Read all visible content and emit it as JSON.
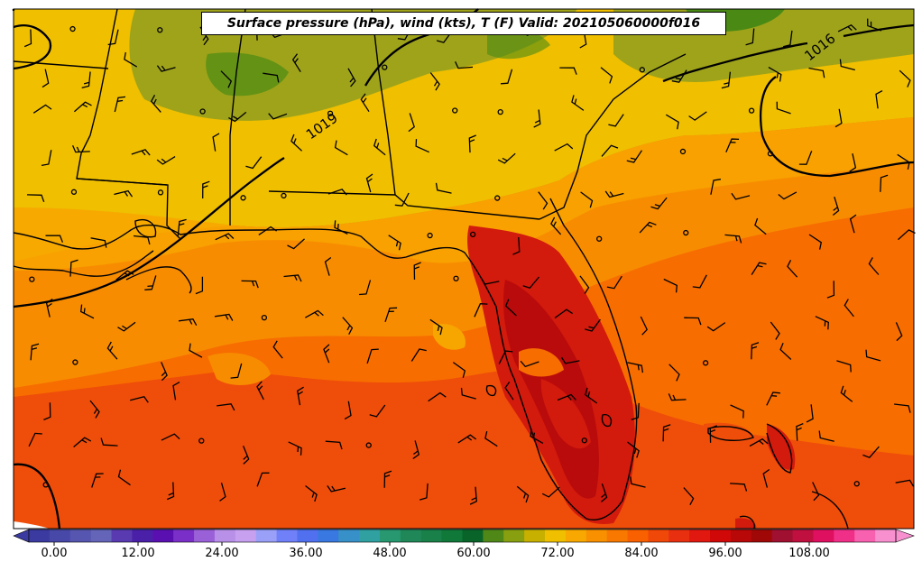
{
  "title": "Surface pressure (hPa), wind (kts), T (F) Valid: 202105060000f016",
  "isobars": [
    {
      "label": "1019"
    },
    {
      "label": "1016"
    }
  ],
  "colorbar": {
    "ticks": [
      "0.00",
      "12.00",
      "24.00",
      "36.00",
      "48.00",
      "60.00",
      "72.00",
      "84.00",
      "96.00",
      "108.00"
    ],
    "colors": [
      "#3a3aa0",
      "#4848a8",
      "#5656b0",
      "#6464b8",
      "#5a3ab0",
      "#4a20a8",
      "#5a10b0",
      "#7a30c8",
      "#9a60d8",
      "#b890e8",
      "#c8a0f0",
      "#9aa0f8",
      "#7080f8",
      "#5070f0",
      "#3878e0",
      "#3890c8",
      "#30a0a0",
      "#289870",
      "#208858",
      "#188048",
      "#107838",
      "#086428",
      "#508818",
      "#88a010",
      "#c8b000",
      "#f0c000",
      "#f8a800",
      "#f89000",
      "#f87800",
      "#f86000",
      "#f04808",
      "#e83010",
      "#e01810",
      "#d00808",
      "#b80808",
      "#a00808",
      "#a01030",
      "#c01040",
      "#e01060",
      "#f03088",
      "#f860b0",
      "#f890d0"
    ]
  },
  "legend_colors": {
    "cool_olive": "#9ea31a",
    "green": "#4a8a14",
    "yellow": "#efbf00",
    "light_orange": "#f7a600",
    "orange": "#f88c00",
    "dark_orange": "#f76d00",
    "red_orange": "#ef4d0a",
    "red": "#d21a0d",
    "dark_red": "#b90b0b"
  }
}
